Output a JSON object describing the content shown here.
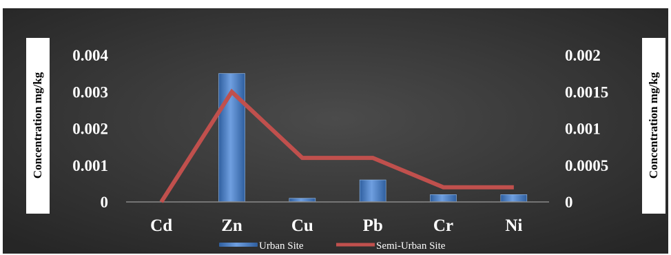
{
  "chart_data": {
    "type": "bar",
    "categories": [
      "Cd",
      "Zn",
      "Cu",
      "Pb",
      "Cr",
      "Ni"
    ],
    "series": [
      {
        "name": "Urban Site",
        "type": "bar",
        "axis": "left",
        "values": [
          0,
          0.0035,
          0.0001,
          0.0006,
          0.0002,
          0.0002
        ],
        "color": "#4a7fc4"
      },
      {
        "name": "Semi-Urban Site",
        "type": "line",
        "axis": "right",
        "values": [
          0,
          0.0015,
          0.0006,
          0.0006,
          0.0002,
          0.0002
        ],
        "color": "#c0504d"
      }
    ],
    "left_axis": {
      "label": "Concentration mg/kg",
      "ylim": [
        0,
        0.004
      ],
      "ticks": [
        "0",
        "0.001",
        "0.002",
        "0.003",
        "0.004"
      ]
    },
    "right_axis": {
      "label": "Concentration mg/kg",
      "ylim": [
        0,
        0.002
      ],
      "ticks": [
        "0",
        "0.0005",
        "0.001",
        "0.0015",
        "0.002"
      ]
    },
    "grid": false,
    "legend_position": "bottom",
    "background_color": "#3a3a3a"
  }
}
